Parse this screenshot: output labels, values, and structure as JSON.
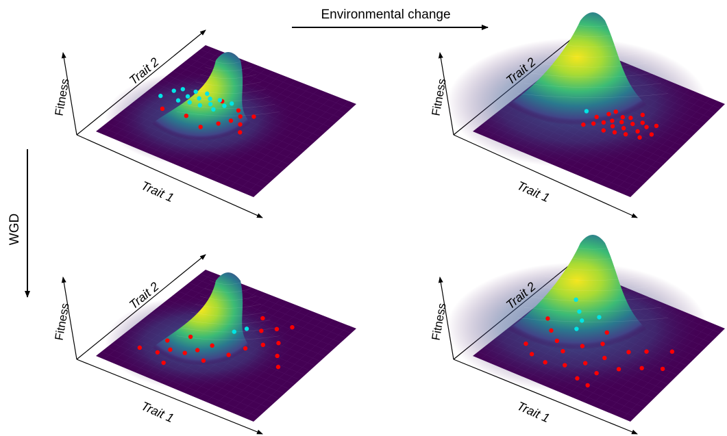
{
  "labels": {
    "top_arrow": "Environmental change",
    "left_arrow": "WGD"
  },
  "axes": {
    "x": "Trait 1",
    "y": "Trait 2",
    "z": "Fitness"
  },
  "colors": {
    "plane": "#440154",
    "peak_top": "#f4e61e",
    "peak_mid": "#26a387",
    "peak_low": "#3b528b",
    "dot_low": "#ff0000",
    "dot_high": "#00e5e5"
  },
  "panels": [
    {
      "id": "top-left",
      "condition": "before",
      "peak": [
        0.18,
        0.5
      ],
      "dots_high": [
        [
          0.12,
          0.42
        ],
        [
          0.15,
          0.5
        ],
        [
          0.18,
          0.54
        ],
        [
          0.22,
          0.44
        ],
        [
          0.24,
          0.5
        ],
        [
          0.25,
          0.56
        ],
        [
          0.28,
          0.46
        ],
        [
          0.3,
          0.52
        ],
        [
          0.31,
          0.58
        ],
        [
          0.34,
          0.47
        ],
        [
          0.35,
          0.55
        ],
        [
          0.38,
          0.51
        ],
        [
          0.4,
          0.57
        ],
        [
          0.42,
          0.48
        ],
        [
          0.45,
          0.54
        ],
        [
          0.47,
          0.58
        ]
      ],
      "dots_low": [
        [
          0.16,
          0.38
        ],
        [
          0.3,
          0.4
        ],
        [
          0.42,
          0.36
        ],
        [
          0.48,
          0.44
        ],
        [
          0.52,
          0.5
        ],
        [
          0.5,
          0.6
        ],
        [
          0.54,
          0.56
        ],
        [
          0.58,
          0.5
        ],
        [
          0.6,
          0.6
        ],
        [
          0.62,
          0.44
        ],
        [
          0.38,
          0.62
        ]
      ]
    },
    {
      "id": "top-right",
      "condition": "after-environmental-change",
      "peak": [
        0.1,
        0.62
      ],
      "dots_high": [
        [
          0.42,
          0.46
        ]
      ],
      "dots_low": [
        [
          0.44,
          0.4
        ],
        [
          0.46,
          0.5
        ],
        [
          0.48,
          0.44
        ],
        [
          0.5,
          0.56
        ],
        [
          0.52,
          0.48
        ],
        [
          0.52,
          0.6
        ],
        [
          0.55,
          0.52
        ],
        [
          0.56,
          0.42
        ],
        [
          0.58,
          0.58
        ],
        [
          0.58,
          0.48
        ],
        [
          0.6,
          0.54
        ],
        [
          0.62,
          0.44
        ],
        [
          0.62,
          0.6
        ],
        [
          0.64,
          0.5
        ],
        [
          0.66,
          0.56
        ],
        [
          0.66,
          0.66
        ],
        [
          0.68,
          0.46
        ],
        [
          0.7,
          0.6
        ],
        [
          0.72,
          0.52
        ],
        [
          0.74,
          0.58
        ],
        [
          0.76,
          0.48
        ],
        [
          0.78,
          0.62
        ],
        [
          0.8,
          0.54
        ]
      ]
    },
    {
      "id": "bottom-left",
      "condition": "after-WGD",
      "peak": [
        0.18,
        0.5
      ],
      "dots_high": [
        [
          0.5,
          0.56
        ],
        [
          0.54,
          0.62
        ]
      ],
      "dots_low": [
        [
          0.14,
          0.2
        ],
        [
          0.24,
          0.22
        ],
        [
          0.28,
          0.28
        ],
        [
          0.32,
          0.16
        ],
        [
          0.22,
          0.34
        ],
        [
          0.36,
          0.3
        ],
        [
          0.4,
          0.36
        ],
        [
          0.3,
          0.44
        ],
        [
          0.44,
          0.44
        ],
        [
          0.48,
          0.3
        ],
        [
          0.56,
          0.42
        ],
        [
          0.58,
          0.7
        ],
        [
          0.64,
          0.76
        ],
        [
          0.7,
          0.82
        ],
        [
          0.6,
          0.52
        ],
        [
          0.66,
          0.6
        ],
        [
          0.72,
          0.66
        ],
        [
          0.78,
          0.56
        ],
        [
          0.84,
          0.48
        ],
        [
          0.52,
          0.8
        ]
      ]
    },
    {
      "id": "bottom-right",
      "condition": "after-WGD-and-environmental-change",
      "peak": [
        0.1,
        0.62
      ],
      "dots_high": [
        [
          0.18,
          0.7
        ],
        [
          0.26,
          0.62
        ],
        [
          0.32,
          0.56
        ],
        [
          0.38,
          0.64
        ],
        [
          0.34,
          0.48
        ]
      ],
      "dots_low": [
        [
          0.12,
          0.52
        ],
        [
          0.2,
          0.44
        ],
        [
          0.28,
          0.38
        ],
        [
          0.36,
          0.32
        ],
        [
          0.42,
          0.42
        ],
        [
          0.16,
          0.26
        ],
        [
          0.24,
          0.2
        ],
        [
          0.34,
          0.18
        ],
        [
          0.44,
          0.22
        ],
        [
          0.52,
          0.3
        ],
        [
          0.5,
          0.5
        ],
        [
          0.58,
          0.4
        ],
        [
          0.62,
          0.26
        ],
        [
          0.66,
          0.52
        ],
        [
          0.7,
          0.36
        ],
        [
          0.74,
          0.58
        ],
        [
          0.8,
          0.44
        ],
        [
          0.56,
          0.16
        ],
        [
          0.64,
          0.14
        ],
        [
          0.46,
          0.6
        ],
        [
          0.86,
          0.66
        ],
        [
          0.9,
          0.5
        ]
      ]
    }
  ]
}
